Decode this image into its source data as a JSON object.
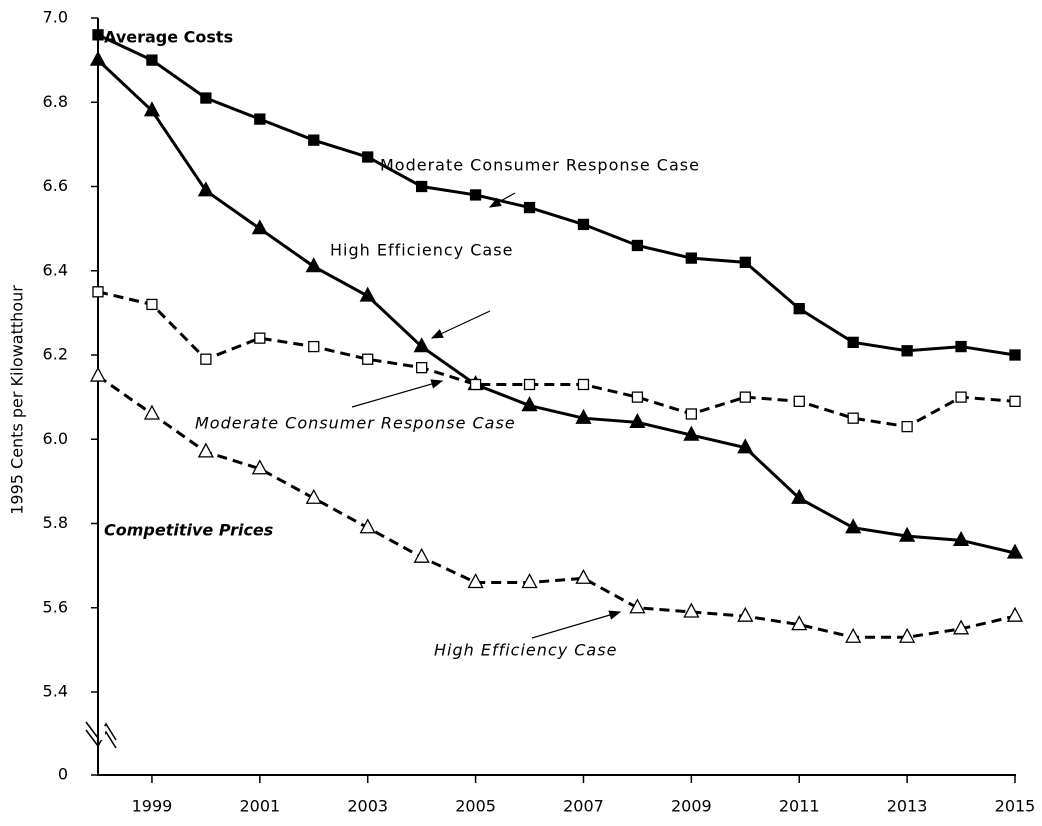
{
  "chart_data": {
    "type": "line",
    "ylabel": "1995 Cents per Kilowatthour",
    "x": [
      1998,
      1999,
      2000,
      2001,
      2002,
      2003,
      2004,
      2005,
      2006,
      2007,
      2008,
      2009,
      2010,
      2011,
      2012,
      2013,
      2014,
      2015
    ],
    "xlim": [
      1998,
      2015
    ],
    "xticks": [
      1999,
      2001,
      2003,
      2005,
      2007,
      2009,
      2011,
      2013,
      2015
    ],
    "ylim": [
      0,
      7.0
    ],
    "ybreak": [
      0,
      5.4
    ],
    "yticks": [
      0,
      5.4,
      5.6,
      5.8,
      {
        "value": 6,
        "label": "6.0"
      },
      6.2,
      6.4,
      6.6,
      6.8,
      {
        "value": 7,
        "label": "7.0"
      }
    ],
    "groups": [
      {
        "name": "Average Costs",
        "series": [
          {
            "name": "Moderate Consumer Response Case",
            "color": "#000000",
            "marker": "square",
            "filled": true,
            "dashed": false,
            "values": [
              6.96,
              6.9,
              6.81,
              6.76,
              6.71,
              6.67,
              6.6,
              6.58,
              6.55,
              6.51,
              6.46,
              6.43,
              6.42,
              6.31,
              6.23,
              6.21,
              6.22,
              6.2
            ]
          },
          {
            "name": "High Efficiency Case",
            "color": "#000000",
            "marker": "triangle",
            "filled": true,
            "dashed": false,
            "values": [
              6.9,
              6.78,
              6.59,
              6.5,
              6.41,
              6.34,
              6.22,
              6.13,
              6.08,
              6.05,
              6.04,
              6.01,
              5.98,
              5.86,
              5.79,
              5.77,
              5.76,
              5.73
            ]
          }
        ]
      },
      {
        "name": "Competitive Prices",
        "series": [
          {
            "name": "Moderate Consumer Response Case",
            "color": "#000000",
            "marker": "square",
            "filled": false,
            "dashed": true,
            "values": [
              6.35,
              6.32,
              6.19,
              6.24,
              6.22,
              6.19,
              6.17,
              6.13,
              6.13,
              6.13,
              6.1,
              6.06,
              6.1,
              6.09,
              6.05,
              6.03,
              6.1,
              6.09
            ]
          },
          {
            "name": "High Efficiency Case",
            "color": "#000000",
            "marker": "triangle",
            "filled": false,
            "dashed": true,
            "values": [
              6.15,
              6.06,
              5.97,
              5.93,
              5.86,
              5.79,
              5.72,
              5.66,
              5.66,
              5.67,
              5.6,
              5.59,
              5.58,
              5.56,
              5.53,
              5.53,
              5.55,
              5.58
            ]
          }
        ]
      }
    ]
  }
}
